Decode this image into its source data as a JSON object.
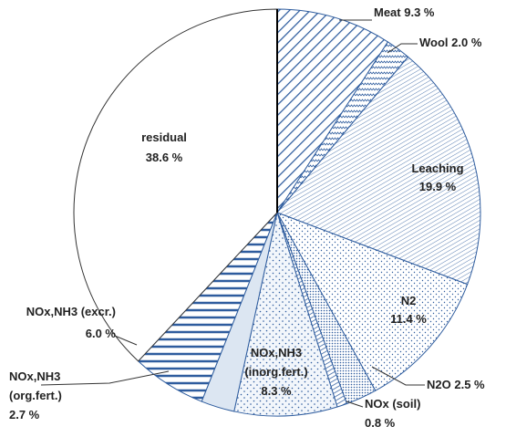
{
  "chart_data": {
    "type": "pie",
    "categories": [
      "Meat",
      "Wool",
      "Leaching",
      "N2",
      "N2O",
      "NOx (soil)",
      "NOx,NH3 (inorg.fert.)",
      "NOx,NH3 (org.fert.)",
      "NOx,NH3 (excr.)",
      "residual"
    ],
    "values": [
      9.3,
      2.0,
      19.9,
      11.4,
      2.5,
      0.8,
      8.3,
      2.7,
      6.0,
      38.6
    ],
    "value_labels": [
      "9.3 %",
      "2.0 %",
      "19.9 %",
      "11.4 %",
      "2.5 %",
      "0.8 %",
      "8.3 %",
      "2.7 %",
      "6.0 %",
      "38.6 %"
    ],
    "color": "#2e5c9e"
  }
}
